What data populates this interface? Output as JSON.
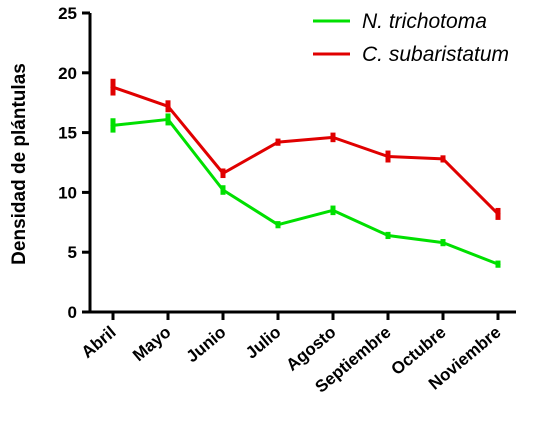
{
  "chart_data": {
    "type": "line",
    "title": "",
    "xlabel": "",
    "ylabel": "Densidad de plántulas",
    "categories": [
      "Abril",
      "Mayo",
      "Junio",
      "Julio",
      "Agosto",
      "Septiembre",
      "Octubre",
      "Noviembre"
    ],
    "ylim": [
      0,
      25
    ],
    "yticks": [
      0,
      5,
      10,
      15,
      20,
      25
    ],
    "grid": false,
    "legend_position": "top-right",
    "series": [
      {
        "name": "N. trichotoma",
        "color": "#00e000",
        "values": [
          15.6,
          16.1,
          10.2,
          7.3,
          8.5,
          6.4,
          5.8,
          4.0
        ],
        "errors": [
          0.6,
          0.5,
          0.4,
          0.3,
          0.4,
          0.3,
          0.3,
          0.3
        ]
      },
      {
        "name": "C. subaristatum",
        "color": "#e00000",
        "values": [
          18.8,
          17.2,
          11.6,
          14.2,
          14.6,
          13.0,
          12.8,
          8.2
        ],
        "errors": [
          0.7,
          0.5,
          0.4,
          0.3,
          0.4,
          0.5,
          0.3,
          0.5
        ]
      }
    ]
  }
}
